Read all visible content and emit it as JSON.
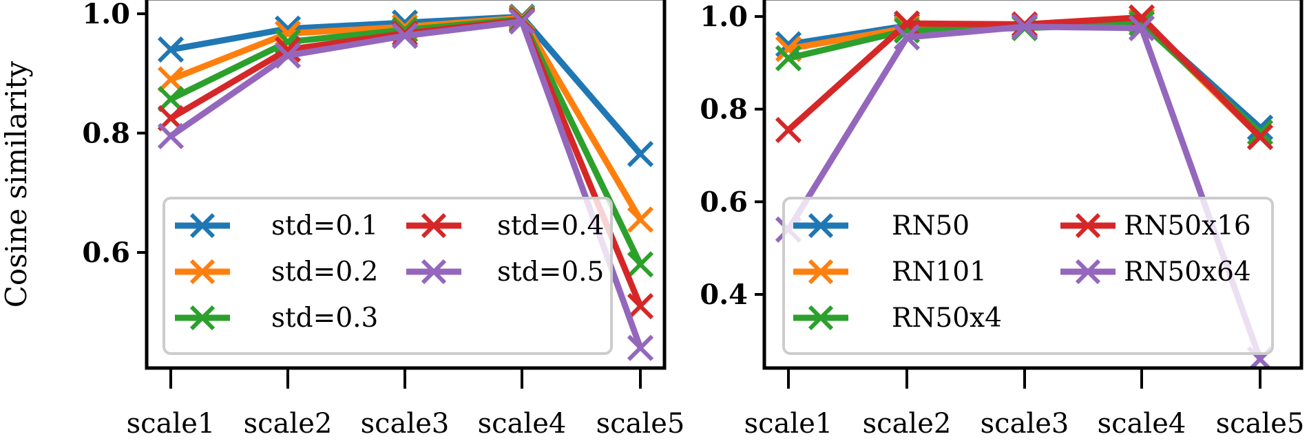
{
  "chart_data": [
    {
      "type": "line",
      "categories": [
        "scale1",
        "scale2",
        "scale3",
        "scale4",
        "scale5"
      ],
      "ylabel": "Cosine similarity",
      "ylim": [
        0.4,
        1.0
      ],
      "yticks": [
        "0.6",
        "0.8",
        "1.0"
      ],
      "marker": "x",
      "grid": false,
      "legend_position": "bottom",
      "legend_columns": 2,
      "series": [
        {
          "name": "std=0.1",
          "color": "#1f77b4",
          "values": [
            0.94,
            0.975,
            0.985,
            0.995,
            0.765
          ]
        },
        {
          "name": "std=0.2",
          "color": "#ff7f0e",
          "values": [
            0.89,
            0.967,
            0.978,
            0.993,
            0.655
          ]
        },
        {
          "name": "std=0.3",
          "color": "#2ca02c",
          "values": [
            0.857,
            0.953,
            0.973,
            0.991,
            0.58
          ]
        },
        {
          "name": "std=0.4",
          "color": "#d62728",
          "values": [
            0.825,
            0.94,
            0.967,
            0.989,
            0.51
          ]
        },
        {
          "name": "std=0.5",
          "color": "#9467bd",
          "values": [
            0.795,
            0.93,
            0.963,
            0.987,
            0.44
          ]
        }
      ]
    },
    {
      "type": "line",
      "categories": [
        "scale1",
        "scale2",
        "scale3",
        "scale4",
        "scale5"
      ],
      "ylim": [
        0.24,
        1.0
      ],
      "yticks": [
        "0.4",
        "0.6",
        "0.8",
        "1.0"
      ],
      "marker": "x",
      "grid": false,
      "legend_position": "bottom",
      "legend_columns": 2,
      "series": [
        {
          "name": "RN50",
          "color": "#1f77b4",
          "values": [
            0.94,
            0.98,
            0.98,
            0.99,
            0.76
          ]
        },
        {
          "name": "RN101",
          "color": "#ff7f0e",
          "values": [
            0.93,
            0.975,
            0.98,
            0.99,
            0.74
          ]
        },
        {
          "name": "RN50x4",
          "color": "#2ca02c",
          "values": [
            0.91,
            0.97,
            0.975,
            0.985,
            0.75
          ]
        },
        {
          "name": "RN50x16",
          "color": "#d62728",
          "values": [
            0.755,
            0.985,
            0.983,
            0.998,
            0.74
          ]
        },
        {
          "name": "RN50x64",
          "color": "#9467bd",
          "values": [
            0.54,
            0.955,
            0.978,
            0.975,
            0.26
          ]
        }
      ]
    }
  ]
}
